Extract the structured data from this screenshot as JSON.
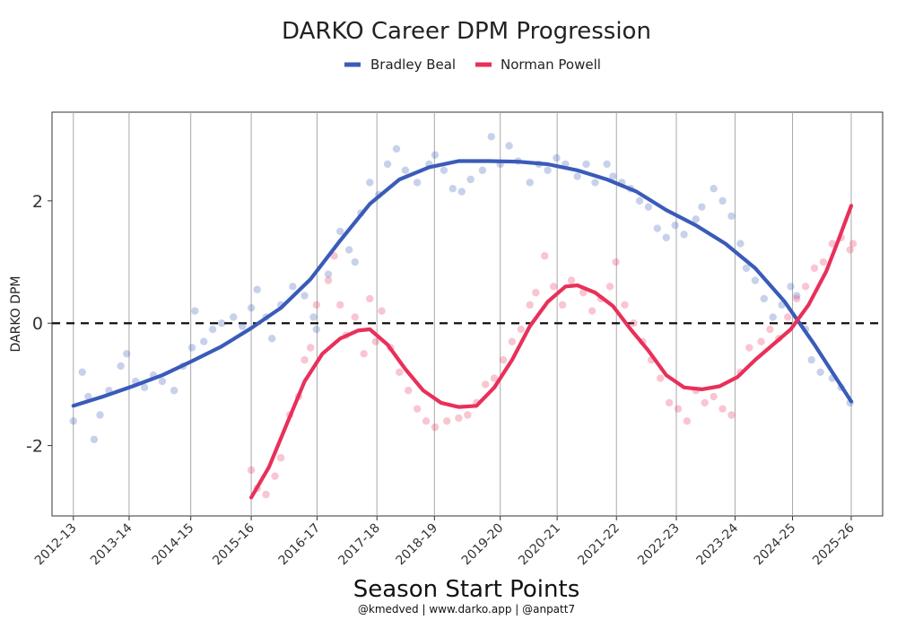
{
  "chart_data": {
    "type": "scatter",
    "title": "DARKO Career DPM Progression",
    "xlabel": "Season Start Points",
    "ylabel": "DARKO DPM",
    "caption": "@kmedved | www.darko.app | @anpatt7",
    "ylim": [
      -3.15,
      3.45
    ],
    "yticks": [
      -2,
      0,
      2
    ],
    "ytick_labels": [
      "-2",
      "0",
      "2"
    ],
    "reference_line": 0,
    "grid": "vertical",
    "legend": "top",
    "xlim": [
      -0.36,
      13.65
    ],
    "categories": [
      "2012-13",
      "2013-14",
      "2014-15",
      "2015-16",
      "2016-17",
      "2017-18",
      "2018-19",
      "2019-20",
      "2020-21",
      "2021-22",
      "2022-23",
      "2023-24",
      "2024-25",
      "2025-26"
    ],
    "category_positions": [
      0,
      0.94,
      1.98,
      3.0,
      4.11,
      5.12,
      6.09,
      7.2,
      8.16,
      9.16,
      10.17,
      11.16,
      12.13,
      13.12
    ],
    "series": [
      {
        "name": "Bradley Beal",
        "color": "#3a5bb8",
        "trend": [
          [
            0,
            -1.35
          ],
          [
            0.5,
            -1.2
          ],
          [
            1.0,
            -1.03
          ],
          [
            1.5,
            -0.85
          ],
          [
            2.0,
            -0.62
          ],
          [
            2.5,
            -0.38
          ],
          [
            3.0,
            -0.08
          ],
          [
            3.5,
            0.25
          ],
          [
            4.0,
            0.72
          ],
          [
            4.5,
            1.35
          ],
          [
            5.0,
            1.95
          ],
          [
            5.5,
            2.35
          ],
          [
            6.0,
            2.55
          ],
          [
            6.5,
            2.65
          ],
          [
            7.0,
            2.65
          ],
          [
            7.5,
            2.64
          ],
          [
            8.0,
            2.6
          ],
          [
            8.5,
            2.5
          ],
          [
            9.0,
            2.35
          ],
          [
            9.5,
            2.15
          ],
          [
            10.0,
            1.85
          ],
          [
            10.5,
            1.6
          ],
          [
            11.0,
            1.3
          ],
          [
            11.5,
            0.9
          ],
          [
            12.0,
            0.35
          ],
          [
            12.5,
            -0.35
          ],
          [
            13.12,
            -1.28
          ]
        ],
        "points": [
          [
            0,
            -1.6
          ],
          [
            0.15,
            -0.8
          ],
          [
            0.25,
            -1.2
          ],
          [
            0.35,
            -1.9
          ],
          [
            0.45,
            -1.5
          ],
          [
            0.6,
            -1.1
          ],
          [
            0.8,
            -0.7
          ],
          [
            0.9,
            -0.5
          ],
          [
            1.05,
            -0.95
          ],
          [
            1.2,
            -1.05
          ],
          [
            1.35,
            -0.85
          ],
          [
            1.5,
            -0.95
          ],
          [
            1.7,
            -1.1
          ],
          [
            1.85,
            -0.7
          ],
          [
            2.0,
            -0.4
          ],
          [
            2.05,
            0.2
          ],
          [
            2.2,
            -0.3
          ],
          [
            2.35,
            -0.1
          ],
          [
            2.5,
            0.0
          ],
          [
            2.7,
            0.1
          ],
          [
            2.85,
            -0.05
          ],
          [
            3.0,
            0.25
          ],
          [
            3.1,
            0.55
          ],
          [
            3.25,
            0.1
          ],
          [
            3.35,
            -0.25
          ],
          [
            3.5,
            0.3
          ],
          [
            3.7,
            0.6
          ],
          [
            3.9,
            0.45
          ],
          [
            4.05,
            0.1
          ],
          [
            4.1,
            -0.1
          ],
          [
            4.3,
            0.8
          ],
          [
            4.5,
            1.5
          ],
          [
            4.65,
            1.2
          ],
          [
            4.75,
            1.0
          ],
          [
            4.85,
            1.8
          ],
          [
            5.0,
            2.3
          ],
          [
            5.15,
            2.1
          ],
          [
            5.3,
            2.6
          ],
          [
            5.45,
            2.85
          ],
          [
            5.6,
            2.5
          ],
          [
            5.8,
            2.3
          ],
          [
            6.0,
            2.6
          ],
          [
            6.1,
            2.75
          ],
          [
            6.25,
            2.5
          ],
          [
            6.4,
            2.2
          ],
          [
            6.55,
            2.15
          ],
          [
            6.7,
            2.35
          ],
          [
            6.9,
            2.5
          ],
          [
            7.05,
            3.05
          ],
          [
            7.2,
            2.6
          ],
          [
            7.35,
            2.9
          ],
          [
            7.5,
            2.65
          ],
          [
            7.7,
            2.3
          ],
          [
            7.85,
            2.6
          ],
          [
            8.0,
            2.5
          ],
          [
            8.15,
            2.7
          ],
          [
            8.3,
            2.6
          ],
          [
            8.5,
            2.4
          ],
          [
            8.65,
            2.6
          ],
          [
            8.8,
            2.3
          ],
          [
            9.0,
            2.6
          ],
          [
            9.1,
            2.4
          ],
          [
            9.25,
            2.3
          ],
          [
            9.4,
            2.2
          ],
          [
            9.55,
            2.0
          ],
          [
            9.7,
            1.9
          ],
          [
            9.85,
            1.55
          ],
          [
            10.0,
            1.4
          ],
          [
            10.15,
            1.6
          ],
          [
            10.3,
            1.45
          ],
          [
            10.5,
            1.7
          ],
          [
            10.6,
            1.9
          ],
          [
            10.8,
            2.2
          ],
          [
            10.95,
            2.0
          ],
          [
            11.1,
            1.75
          ],
          [
            11.25,
            1.3
          ],
          [
            11.35,
            0.9
          ],
          [
            11.5,
            0.7
          ],
          [
            11.65,
            0.4
          ],
          [
            11.8,
            0.1
          ],
          [
            11.95,
            0.3
          ],
          [
            12.1,
            0.6
          ],
          [
            12.2,
            0.45
          ],
          [
            12.35,
            -0.1
          ],
          [
            12.45,
            -0.6
          ],
          [
            12.6,
            -0.8
          ],
          [
            12.8,
            -0.9
          ],
          [
            12.95,
            -1.05
          ],
          [
            13.1,
            -1.3
          ]
        ]
      },
      {
        "name": "Norman Powell",
        "color": "#e8305a",
        "trend": [
          [
            3.0,
            -2.85
          ],
          [
            3.3,
            -2.35
          ],
          [
            3.6,
            -1.65
          ],
          [
            3.9,
            -0.95
          ],
          [
            4.2,
            -0.5
          ],
          [
            4.5,
            -0.25
          ],
          [
            4.8,
            -0.12
          ],
          [
            5.0,
            -0.1
          ],
          [
            5.3,
            -0.35
          ],
          [
            5.6,
            -0.75
          ],
          [
            5.9,
            -1.1
          ],
          [
            6.2,
            -1.3
          ],
          [
            6.5,
            -1.37
          ],
          [
            6.8,
            -1.35
          ],
          [
            7.1,
            -1.05
          ],
          [
            7.4,
            -0.6
          ],
          [
            7.7,
            -0.05
          ],
          [
            8.0,
            0.35
          ],
          [
            8.3,
            0.6
          ],
          [
            8.5,
            0.62
          ],
          [
            8.8,
            0.5
          ],
          [
            9.1,
            0.28
          ],
          [
            9.4,
            -0.1
          ],
          [
            9.7,
            -0.45
          ],
          [
            10.0,
            -0.85
          ],
          [
            10.3,
            -1.05
          ],
          [
            10.6,
            -1.08
          ],
          [
            10.9,
            -1.03
          ],
          [
            11.2,
            -0.88
          ],
          [
            11.5,
            -0.6
          ],
          [
            11.8,
            -0.35
          ],
          [
            12.1,
            -0.1
          ],
          [
            12.4,
            0.3
          ],
          [
            12.7,
            0.85
          ],
          [
            12.9,
            1.35
          ],
          [
            13.12,
            1.92
          ]
        ],
        "points": [
          [
            3.0,
            -2.4
          ],
          [
            3.1,
            -2.7
          ],
          [
            3.25,
            -2.8
          ],
          [
            3.4,
            -2.5
          ],
          [
            3.5,
            -2.2
          ],
          [
            3.65,
            -1.5
          ],
          [
            3.8,
            -1.2
          ],
          [
            3.9,
            -0.6
          ],
          [
            4.0,
            -0.4
          ],
          [
            4.1,
            0.3
          ],
          [
            4.3,
            0.7
          ],
          [
            4.4,
            1.1
          ],
          [
            4.5,
            0.3
          ],
          [
            4.6,
            -0.2
          ],
          [
            4.75,
            0.1
          ],
          [
            4.9,
            -0.5
          ],
          [
            5.0,
            0.4
          ],
          [
            5.1,
            -0.3
          ],
          [
            5.2,
            0.2
          ],
          [
            5.35,
            -0.4
          ],
          [
            5.5,
            -0.8
          ],
          [
            5.65,
            -1.1
          ],
          [
            5.8,
            -1.4
          ],
          [
            5.95,
            -1.6
          ],
          [
            6.1,
            -1.7
          ],
          [
            6.3,
            -1.6
          ],
          [
            6.5,
            -1.55
          ],
          [
            6.65,
            -1.5
          ],
          [
            6.8,
            -1.3
          ],
          [
            6.95,
            -1.0
          ],
          [
            7.1,
            -0.9
          ],
          [
            7.25,
            -0.6
          ],
          [
            7.4,
            -0.3
          ],
          [
            7.55,
            -0.1
          ],
          [
            7.7,
            0.3
          ],
          [
            7.8,
            0.5
          ],
          [
            7.95,
            1.1
          ],
          [
            8.1,
            0.6
          ],
          [
            8.25,
            0.3
          ],
          [
            8.4,
            0.7
          ],
          [
            8.6,
            0.5
          ],
          [
            8.75,
            0.2
          ],
          [
            8.9,
            0.4
          ],
          [
            9.05,
            0.6
          ],
          [
            9.15,
            1.0
          ],
          [
            9.3,
            0.3
          ],
          [
            9.45,
            0.0
          ],
          [
            9.6,
            -0.3
          ],
          [
            9.75,
            -0.6
          ],
          [
            9.9,
            -0.9
          ],
          [
            10.05,
            -1.3
          ],
          [
            10.2,
            -1.4
          ],
          [
            10.35,
            -1.6
          ],
          [
            10.5,
            -1.1
          ],
          [
            10.65,
            -1.3
          ],
          [
            10.8,
            -1.2
          ],
          [
            10.95,
            -1.4
          ],
          [
            11.1,
            -1.5
          ],
          [
            11.25,
            -0.8
          ],
          [
            11.4,
            -0.4
          ],
          [
            11.6,
            -0.3
          ],
          [
            11.75,
            -0.1
          ],
          [
            11.9,
            -0.25
          ],
          [
            12.05,
            0.1
          ],
          [
            12.2,
            0.4
          ],
          [
            12.35,
            0.6
          ],
          [
            12.5,
            0.9
          ],
          [
            12.65,
            1.0
          ],
          [
            12.8,
            1.3
          ],
          [
            12.95,
            1.4
          ],
          [
            13.1,
            1.2
          ],
          [
            13.15,
            1.3
          ]
        ]
      }
    ]
  }
}
